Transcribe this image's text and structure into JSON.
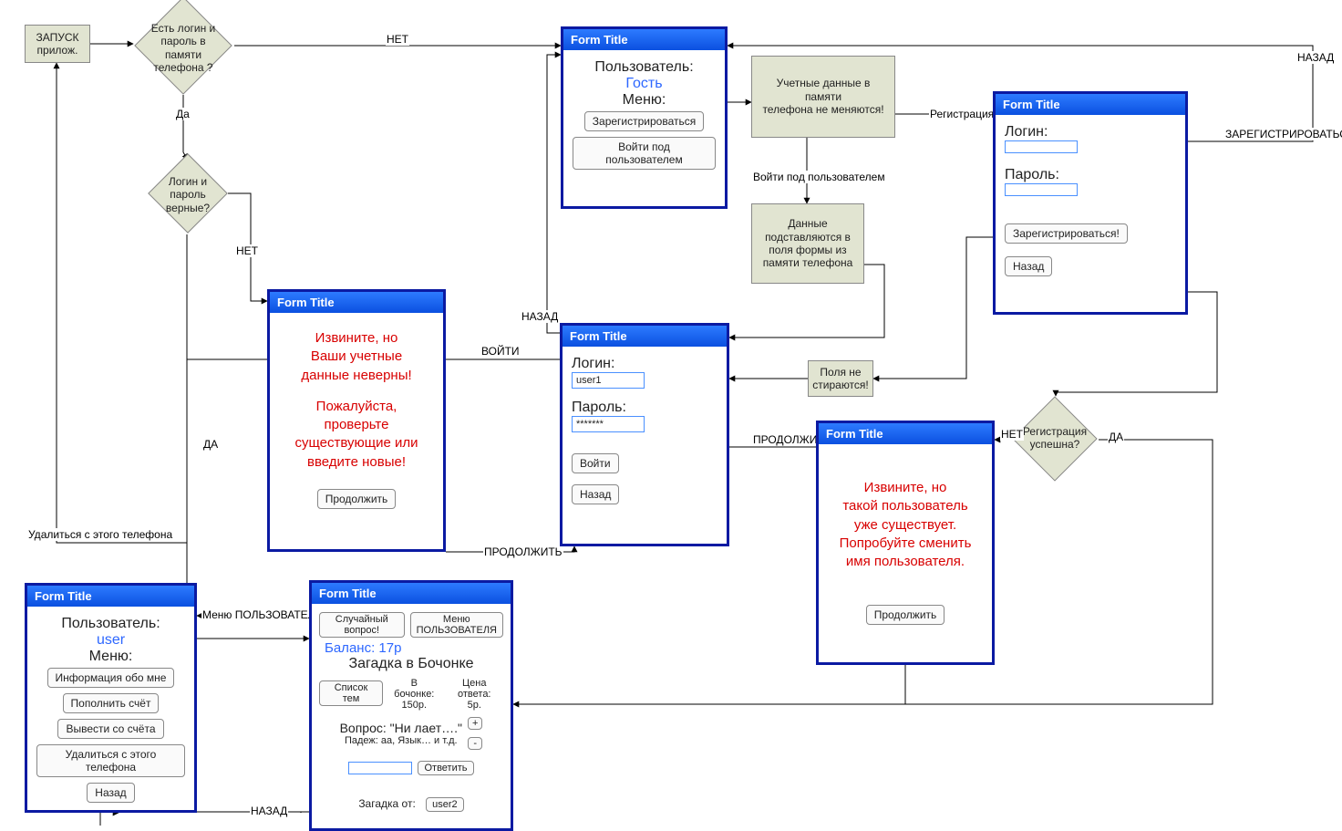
{
  "form_title": "Form Title",
  "start_box": "ЗАПУСК\nприлож.",
  "d1": "Есть логин и\nпароль в\nпамяти\nтелефона ?",
  "d2": "Логин и\nпароль\nверные?",
  "d3": "Регистрация\nуспешна?",
  "e_net": "НЕТ",
  "e_da_l": "Да",
  "e_da_u": "ДА",
  "e_nazad": "НАЗАД",
  "e_reg": "Регистрация",
  "e_zareg": "ЗАРЕГИСТРИРОВАТЬСЯ",
  "e_voiti_user": "Войти под пользователем",
  "e_voiti": "ВОЙТИ",
  "e_prodolzhit": "ПРОДОЛЖИТЬ",
  "e_menu_user": "Меню ПОЛЬЗОВАТЕЛЯ",
  "e_delete_phone": "Удалиться с этого телефона",
  "e_prod_l": "ПРОДОЛЖИТЬ",
  "info1": "Учетные данные в памяти\nтелефона не меняются!",
  "info2": "Данные\nподставляются в\nполя формы из\nпамяти телефона",
  "info3": "Поля не\nстираются!",
  "guest_user_lbl": "Пользователь:",
  "guest_user_val": "Гость",
  "menu_lbl": "Меню:",
  "btn_register": "Зарегистрироваться",
  "btn_login_user": "Войти под пользователем",
  "reg_login": "Логин:",
  "reg_pass": "Пароль:",
  "btn_register_bang": "Зарегистрироваться!",
  "btn_back": "Назад",
  "login_val": "user1",
  "pass_val": "*******",
  "btn_login": "Войти",
  "err_l1": "Извините, но",
  "err_l2": "Ваши учетные",
  "err_l3": "данные неверны!",
  "err_l4": "Пожалуйста,",
  "err_l5": "проверьте",
  "err_l6": "существующие или",
  "err_l7": "введите новые!",
  "btn_continue": "Продолжить",
  "dup_l1": "Извините, но",
  "dup_l2": "такой пользователь",
  "dup_l3": "уже существует.",
  "dup_l4": "Попробуйте сменить",
  "dup_l5": "имя пользователя.",
  "user_panel_user": "user",
  "up_info": "Информация обо мне",
  "up_topup": "Пополнить счёт",
  "up_withdraw": "Вывести со счёта",
  "up_delete": "Удалиться с этого телефона",
  "g_random": "Случайный вопрос!",
  "g_menu": "Меню\nПОЛЬЗОВАТЕЛЯ",
  "g_balance": "Баланс: 17р",
  "g_title": "Загадка в Бочонке",
  "g_topics": "Список тем",
  "g_inbarrel_lbl": "В бочонке:",
  "g_inbarrel_val": "150р.",
  "g_price_lbl": "Цена ответа:",
  "g_price_val": "5р.",
  "g_question": "Вопрос: \"Ни лает….\"",
  "g_hint": "Падеж: аа, Язык… и т.д.",
  "g_plus": "+",
  "g_minus": "-",
  "g_answer": "Ответить",
  "g_from": "Загадка от:",
  "g_from_user": "user2"
}
